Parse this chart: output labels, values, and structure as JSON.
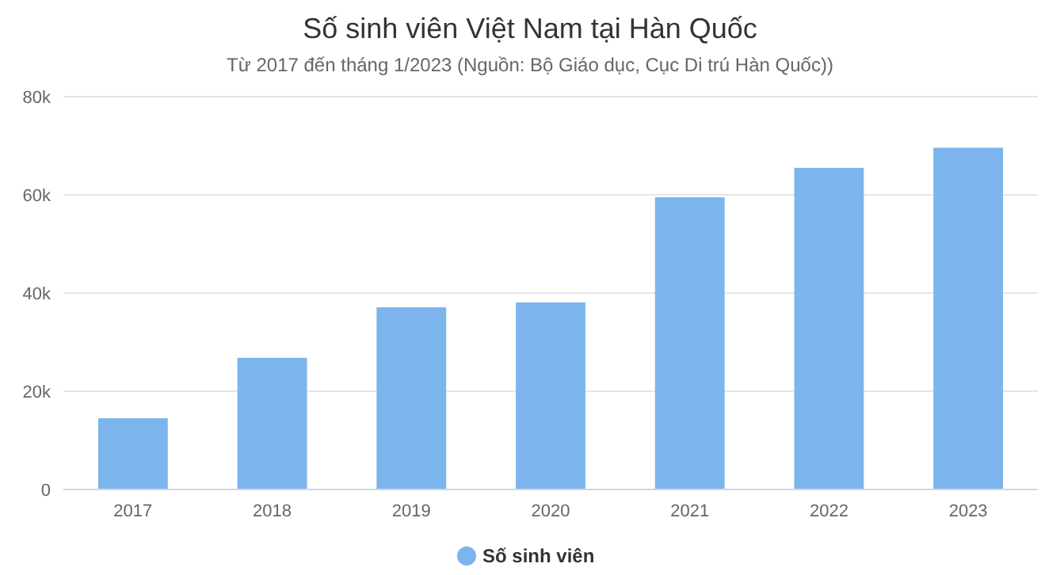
{
  "chart_data": {
    "type": "bar",
    "title": "Số sinh viên Việt Nam tại Hàn Quốc",
    "subtitle": "Từ 2017 đến tháng 1/2023 (Nguồn: Bộ Giáo dục, Cục Di trú Hàn Quốc))",
    "categories": [
      "2017",
      "2018",
      "2019",
      "2020",
      "2021",
      "2022",
      "2023"
    ],
    "series": [
      {
        "name": "Số sinh viên",
        "color": "#7cb5ec",
        "values": [
          14500,
          26800,
          37100,
          38100,
          59500,
          65500,
          69600
        ]
      }
    ],
    "ylim": [
      0,
      80000
    ],
    "yticks": [
      {
        "value": 0,
        "label": "0"
      },
      {
        "value": 20000,
        "label": "20k"
      },
      {
        "value": 40000,
        "label": "40k"
      },
      {
        "value": 60000,
        "label": "60k"
      },
      {
        "value": 80000,
        "label": "80k"
      }
    ],
    "grid": "y",
    "legend": "bottom"
  }
}
